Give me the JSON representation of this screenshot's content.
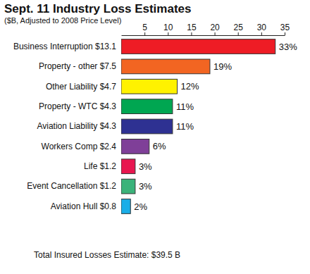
{
  "chart_data": {
    "type": "bar",
    "orientation": "horizontal",
    "title": "Sept. 11 Industry Loss Estimates",
    "subtitle": "($B, Adjusted to 2008 Price Level)",
    "categories": [
      "Business Interruption $13.1",
      "Property - other $7.5",
      "Other Liability $4.7",
      "Property - WTC $4.3",
      "Aviation Liability $4.3",
      "Workers Comp $2.4",
      "Life $1.2",
      "Event Cancellation $1.2",
      "Aviation Hull $0.8"
    ],
    "values": [
      33,
      19,
      12,
      11,
      11,
      6,
      3,
      3,
      2
    ],
    "value_labels": [
      "33%",
      "19%",
      "12%",
      "11%",
      "11%",
      "6%",
      "3%",
      "3%",
      "2%"
    ],
    "colors": [
      "#ee1c25",
      "#f26522",
      "#fff200",
      "#00a651",
      "#2e3192",
      "#7f3f98",
      "#e8174f",
      "#3bb37a",
      "#1aaee8"
    ],
    "xlim": [
      0,
      35
    ],
    "xticks": [
      5,
      10,
      15,
      20,
      25,
      30,
      35
    ],
    "data_labels": true,
    "grid": false,
    "annotations": [
      "Total Insured Losses Estimate: $39.5 B"
    ]
  }
}
